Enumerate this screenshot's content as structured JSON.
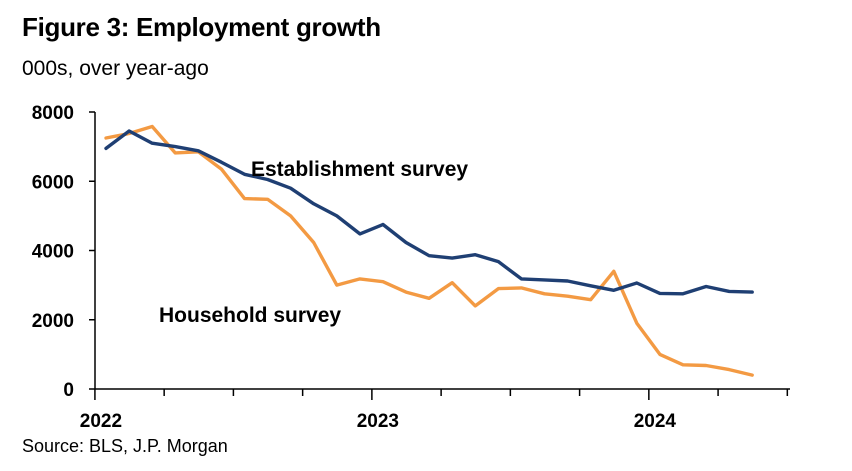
{
  "header": {
    "title": "Figure 3: Employment growth",
    "subtitle": "000s, over year-ago"
  },
  "footer": {
    "source": "Source: BLS, J.P. Morgan"
  },
  "chart_data": {
    "type": "line",
    "title": "Figure 3: Employment growth",
    "subtitle": "000s, over year-ago",
    "ylim": [
      0,
      8000
    ],
    "yticks": [
      "0",
      "2000",
      "4000",
      "6000",
      "8000"
    ],
    "xticks": [
      "2022",
      "2023",
      "2024"
    ],
    "x": [
      "2022-01",
      "2022-02",
      "2022-03",
      "2022-04",
      "2022-05",
      "2022-06",
      "2022-07",
      "2022-08",
      "2022-09",
      "2022-10",
      "2022-11",
      "2022-12",
      "2023-01",
      "2023-02",
      "2023-03",
      "2023-04",
      "2023-05",
      "2023-06",
      "2023-07",
      "2023-08",
      "2023-09",
      "2023-10",
      "2023-11",
      "2023-12",
      "2024-01",
      "2024-02",
      "2024-03",
      "2024-04",
      "2024-05",
      "2024-06",
      "2024-07"
    ],
    "series": [
      {
        "name": "Establishment survey",
        "color": "#1f3f73",
        "values": [
          6950,
          7450,
          7100,
          7000,
          6880,
          6550,
          6200,
          6050,
          5800,
          5350,
          5000,
          4480,
          4750,
          4230,
          3850,
          3780,
          3880,
          3680,
          3180,
          3150,
          3120,
          2980,
          2850,
          3060,
          2760,
          2750,
          2960,
          2820,
          2800,
          null,
          null
        ]
      },
      {
        "name": "Household survey",
        "color": "#f39a43",
        "values": [
          7250,
          7380,
          7580,
          6820,
          6850,
          6350,
          5500,
          5480,
          5000,
          4230,
          3000,
          3180,
          3100,
          2800,
          2620,
          3070,
          2400,
          2900,
          2920,
          2750,
          2680,
          2580,
          3400,
          1900,
          1000,
          700,
          680,
          560,
          400,
          null,
          null
        ]
      }
    ],
    "grid": false,
    "legend": "inline labels"
  }
}
